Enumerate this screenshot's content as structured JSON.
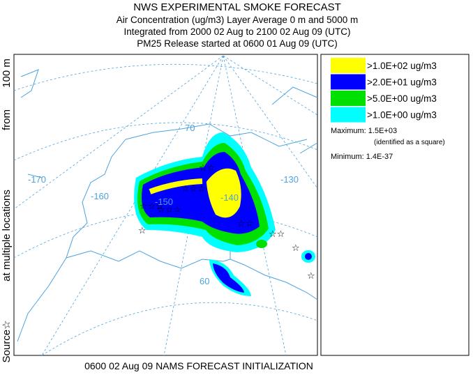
{
  "header": {
    "title": "NWS EXPERIMENTAL SMOKE FORECAST",
    "lines": [
      "Air Concentration (ug/m3) Layer Average    0 m and  5000 m",
      "Integrated from 2000 02 Aug to 2100 02 Aug 09 (UTC)",
      "PM25 Release started at 0600 01 Aug 09 (UTC)"
    ]
  },
  "side_label": [
    "Source☆",
    "at multiple locations",
    "from",
    "100 m"
  ],
  "footer": "0600 02 Aug 09 NAMS FORECAST INITIALIZATION",
  "legend": {
    "items": [
      {
        "label": ">1.0E+02 ug/m3",
        "color": "#ffff00"
      },
      {
        "label": ">2.0E+01 ug/m3",
        "color": "#0000ff"
      },
      {
        "label": ">5.0E+00 ug/m3",
        "color": "#00e000"
      },
      {
        "label": ">1.0E+00 ug/m3",
        "color": "#00ffff"
      }
    ],
    "maximum": "Maximum: 1.5E+03",
    "max_note": "(identified as a square)",
    "minimum": "Minimum: 1.4E-37"
  },
  "map": {
    "labels": [
      "-170",
      "-160",
      "-150",
      "-140",
      "-130",
      "70",
      "60"
    ]
  }
}
